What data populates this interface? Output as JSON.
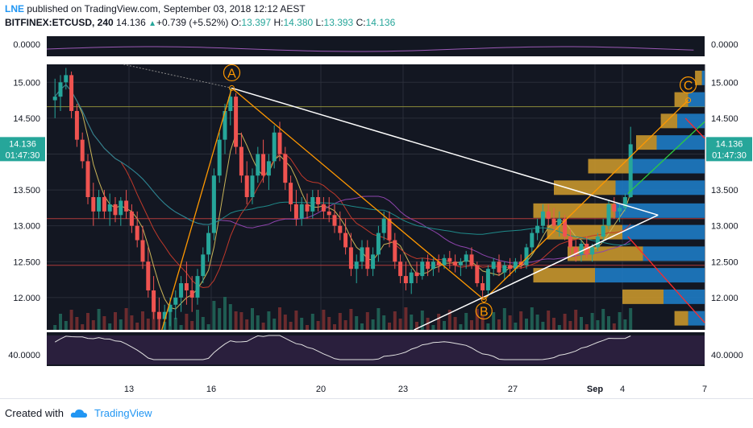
{
  "header": {
    "user": "LNE",
    "published": "published on TradingView.com, September 03, 2018 12:12 AEST",
    "symbol": "BITFINEX:ETCUSD, 240",
    "last": "14.136",
    "change": "+0.739 (+5.52%)",
    "o_label": "O:",
    "o_value": "13.397",
    "h_label": "H:",
    "h_value": "14.380",
    "l_label": "L:",
    "l_value": "13.393",
    "c_label": "C:",
    "c_value": "14.136"
  },
  "footer": {
    "created_with": "Created with",
    "brand": "TradingView"
  },
  "colors": {
    "background": "#131722",
    "bull": "#26a69a",
    "bear": "#ef5350",
    "wedge": "#ffffff",
    "abc": "#ff9800",
    "price_tag": "#26a69a"
  },
  "chart_data": {
    "type": "candlestick",
    "main_axis": {
      "ylim": [
        11.55,
        15.25
      ],
      "ticks": [
        "15.000",
        "14.500",
        "14.000",
        "13.500",
        "13.000",
        "12.500",
        "12.000"
      ],
      "tick_values": [
        15.0,
        14.5,
        14.0,
        13.5,
        13.0,
        12.5,
        12.0
      ]
    },
    "x_axis": {
      "range": [
        10,
        34
      ],
      "ticks": [
        "13",
        "16",
        "20",
        "23",
        "27",
        "Sep",
        "4",
        "7"
      ],
      "tick_values": [
        13,
        16,
        20,
        23,
        27,
        30,
        31,
        34
      ]
    },
    "price_tag": {
      "value": 14.136,
      "label": "14.136",
      "countdown": "01:47:30"
    },
    "top_pane": {
      "ticks": [
        "0.0000"
      ],
      "tick_values": [
        0
      ]
    },
    "bottom_pane": {
      "ticks": [
        "40.0000"
      ],
      "tick_values": [
        40
      ]
    },
    "horizontal_lines": [
      14.66,
      13.1,
      12.45
    ],
    "pattern_points": [
      {
        "label": "A",
        "x": 16.75,
        "y": 14.92
      },
      {
        "label": "B",
        "x": 25.95,
        "y": 11.97
      },
      {
        "label": "C",
        "x": 33.4,
        "y": 14.75
      }
    ],
    "candles": [
      [
        10.3,
        14.75,
        15.05,
        14.5,
        14.8
      ],
      [
        10.5,
        14.8,
        15.1,
        14.6,
        15.0
      ],
      [
        10.7,
        15.0,
        15.2,
        14.9,
        15.1
      ],
      [
        10.9,
        15.1,
        15.15,
        14.5,
        14.6
      ],
      [
        11.1,
        14.6,
        14.7,
        14.1,
        14.2
      ],
      [
        11.3,
        14.2,
        14.3,
        13.8,
        13.9
      ],
      [
        11.5,
        13.9,
        14.0,
        13.3,
        13.4
      ],
      [
        11.7,
        13.4,
        13.6,
        13.0,
        13.2
      ],
      [
        11.9,
        13.2,
        13.5,
        13.1,
        13.4
      ],
      [
        12.1,
        13.4,
        13.5,
        13.1,
        13.2
      ],
      [
        12.3,
        13.2,
        13.45,
        13.0,
        13.3
      ],
      [
        12.5,
        13.3,
        13.4,
        13.05,
        13.15
      ],
      [
        12.7,
        13.15,
        13.4,
        13.0,
        13.35
      ],
      [
        12.9,
        13.35,
        13.5,
        13.1,
        13.2
      ],
      [
        13.1,
        13.2,
        13.3,
        12.9,
        13.0
      ],
      [
        13.3,
        13.0,
        13.2,
        12.7,
        12.8
      ],
      [
        13.5,
        12.8,
        13.0,
        12.4,
        12.5
      ],
      [
        13.7,
        12.5,
        12.7,
        12.0,
        12.1
      ],
      [
        13.9,
        12.1,
        12.3,
        11.7,
        11.8
      ],
      [
        14.1,
        11.8,
        12.0,
        11.55,
        11.7
      ],
      [
        14.3,
        11.7,
        11.9,
        11.55,
        11.8
      ],
      [
        14.5,
        11.8,
        12.0,
        11.6,
        11.9
      ],
      [
        14.7,
        11.9,
        12.1,
        11.7,
        12.0
      ],
      [
        14.9,
        12.0,
        12.3,
        11.8,
        12.2
      ],
      [
        15.1,
        12.2,
        12.5,
        11.9,
        12.1
      ],
      [
        15.3,
        12.1,
        12.3,
        11.8,
        12.0
      ],
      [
        15.5,
        12.0,
        12.4,
        11.9,
        12.3
      ],
      [
        15.7,
        12.3,
        12.7,
        12.2,
        12.6
      ],
      [
        15.9,
        12.6,
        13.0,
        12.5,
        12.9
      ],
      [
        16.1,
        12.9,
        13.8,
        12.8,
        13.7
      ],
      [
        16.3,
        13.7,
        14.3,
        13.6,
        14.2
      ],
      [
        16.5,
        14.2,
        14.7,
        14.0,
        14.6
      ],
      [
        16.7,
        14.6,
        14.92,
        14.4,
        14.8
      ],
      [
        16.9,
        14.8,
        14.85,
        14.0,
        14.1
      ],
      [
        17.1,
        14.1,
        14.3,
        13.6,
        13.7
      ],
      [
        17.3,
        13.7,
        13.9,
        13.3,
        13.4
      ],
      [
        17.5,
        13.4,
        13.8,
        13.3,
        13.7
      ],
      [
        17.7,
        13.7,
        14.1,
        13.6,
        14.0
      ],
      [
        17.9,
        14.0,
        14.2,
        13.6,
        13.7
      ],
      [
        18.1,
        13.7,
        14.0,
        13.5,
        13.9
      ],
      [
        18.3,
        13.9,
        14.4,
        13.8,
        14.3
      ],
      [
        18.5,
        14.3,
        14.45,
        13.9,
        14.0
      ],
      [
        18.7,
        14.0,
        14.1,
        13.5,
        13.6
      ],
      [
        18.9,
        13.6,
        13.7,
        13.2,
        13.3
      ],
      [
        19.1,
        13.3,
        13.5,
        13.0,
        13.1
      ],
      [
        19.3,
        13.1,
        13.4,
        13.0,
        13.3
      ],
      [
        19.5,
        13.3,
        13.45,
        13.1,
        13.2
      ],
      [
        19.7,
        13.2,
        13.5,
        13.1,
        13.4
      ],
      [
        19.9,
        13.4,
        13.5,
        13.2,
        13.3
      ],
      [
        20.1,
        13.3,
        13.4,
        13.1,
        13.2
      ],
      [
        20.3,
        13.2,
        13.4,
        13.05,
        13.15
      ],
      [
        20.5,
        13.15,
        13.3,
        12.9,
        13.0
      ],
      [
        20.7,
        13.0,
        13.2,
        12.8,
        12.9
      ],
      [
        20.9,
        12.9,
        13.1,
        12.6,
        12.7
      ],
      [
        21.1,
        12.7,
        12.9,
        12.3,
        12.4
      ],
      [
        21.3,
        12.4,
        12.6,
        12.2,
        12.5
      ],
      [
        21.5,
        12.5,
        12.8,
        12.4,
        12.7
      ],
      [
        21.7,
        12.7,
        12.8,
        12.3,
        12.4
      ],
      [
        21.9,
        12.4,
        12.7,
        12.3,
        12.6
      ],
      [
        22.1,
        12.6,
        13.0,
        12.5,
        12.9
      ],
      [
        22.3,
        12.9,
        13.2,
        12.8,
        13.1
      ],
      [
        22.5,
        13.1,
        13.2,
        12.7,
        12.8
      ],
      [
        22.7,
        12.8,
        12.9,
        12.4,
        12.5
      ],
      [
        22.9,
        12.5,
        12.6,
        12.2,
        12.3
      ],
      [
        23.1,
        12.3,
        12.5,
        12.1,
        12.2
      ],
      [
        23.3,
        12.2,
        12.4,
        12.05,
        12.35
      ],
      [
        23.5,
        12.35,
        12.5,
        12.2,
        12.3
      ],
      [
        23.7,
        12.3,
        12.55,
        12.25,
        12.5
      ],
      [
        23.9,
        12.5,
        12.6,
        12.3,
        12.4
      ],
      [
        24.1,
        12.4,
        12.55,
        12.3,
        12.5
      ],
      [
        24.3,
        12.5,
        12.6,
        12.35,
        12.45
      ],
      [
        24.5,
        12.45,
        12.6,
        12.4,
        12.55
      ],
      [
        24.7,
        12.55,
        12.65,
        12.4,
        12.5
      ],
      [
        24.9,
        12.5,
        12.6,
        12.35,
        12.45
      ],
      [
        25.1,
        12.45,
        12.55,
        12.3,
        12.5
      ],
      [
        25.3,
        12.5,
        12.65,
        12.4,
        12.6
      ],
      [
        25.5,
        12.6,
        12.7,
        12.4,
        12.45
      ],
      [
        25.7,
        12.45,
        12.5,
        12.15,
        12.2
      ],
      [
        25.9,
        12.2,
        12.3,
        11.97,
        12.1
      ],
      [
        26.1,
        12.1,
        12.45,
        12.05,
        12.4
      ],
      [
        26.3,
        12.4,
        12.55,
        12.3,
        12.5
      ],
      [
        26.5,
        12.5,
        12.6,
        12.3,
        12.35
      ],
      [
        26.7,
        12.35,
        12.5,
        12.25,
        12.45
      ],
      [
        26.9,
        12.45,
        12.55,
        12.3,
        12.4
      ],
      [
        27.1,
        12.4,
        12.55,
        12.35,
        12.5
      ],
      [
        27.3,
        12.5,
        12.6,
        12.4,
        12.45
      ],
      [
        27.5,
        12.45,
        12.75,
        12.4,
        12.7
      ],
      [
        27.7,
        12.7,
        12.95,
        12.6,
        12.9
      ],
      [
        27.9,
        12.9,
        13.1,
        12.8,
        13.0
      ],
      [
        28.1,
        13.0,
        13.3,
        12.9,
        13.2
      ],
      [
        28.3,
        13.2,
        13.3,
        13.0,
        13.1
      ],
      [
        28.5,
        13.1,
        13.25,
        12.9,
        13.0
      ],
      [
        28.7,
        13.0,
        13.2,
        12.85,
        13.1
      ],
      [
        28.9,
        13.1,
        13.15,
        12.8,
        12.85
      ],
      [
        29.1,
        12.85,
        12.95,
        12.6,
        12.7
      ],
      [
        29.3,
        12.7,
        12.8,
        12.5,
        12.6
      ],
      [
        29.5,
        12.6,
        12.8,
        12.5,
        12.75
      ],
      [
        29.7,
        12.75,
        12.85,
        12.55,
        12.6
      ],
      [
        29.9,
        12.6,
        12.75,
        12.5,
        12.7
      ],
      [
        30.1,
        12.7,
        12.9,
        12.65,
        12.85
      ],
      [
        30.3,
        12.85,
        13.1,
        12.8,
        13.0
      ],
      [
        30.5,
        13.0,
        13.35,
        12.95,
        13.3
      ],
      [
        30.7,
        13.3,
        13.4,
        13.1,
        13.2
      ],
      [
        30.9,
        13.2,
        13.3,
        13.05,
        13.25
      ],
      [
        31.1,
        13.25,
        13.45,
        13.2,
        13.4
      ],
      [
        31.3,
        13.4,
        14.38,
        13.39,
        14.136
      ]
    ],
    "volume_profile": [
      {
        "price": 15.05,
        "up": 0.05,
        "down": 0.02
      },
      {
        "price": 14.75,
        "up": 0.1,
        "down": 0.12
      },
      {
        "price": 14.45,
        "up": 0.12,
        "down": 0.2
      },
      {
        "price": 14.15,
        "up": 0.15,
        "down": 0.35
      },
      {
        "price": 13.82,
        "up": 0.3,
        "down": 0.55
      },
      {
        "price": 13.52,
        "up": 0.45,
        "down": 0.65
      },
      {
        "price": 13.2,
        "up": 0.6,
        "down": 0.65
      },
      {
        "price": 12.9,
        "up": 0.55,
        "down": 0.6
      },
      {
        "price": 12.6,
        "up": 0.55,
        "down": 0.45
      },
      {
        "price": 12.3,
        "up": 0.45,
        "down": 0.8
      },
      {
        "price": 12.0,
        "up": 0.3,
        "down": 0.3
      },
      {
        "price": 11.7,
        "up": 0.1,
        "down": 0.12
      }
    ]
  }
}
